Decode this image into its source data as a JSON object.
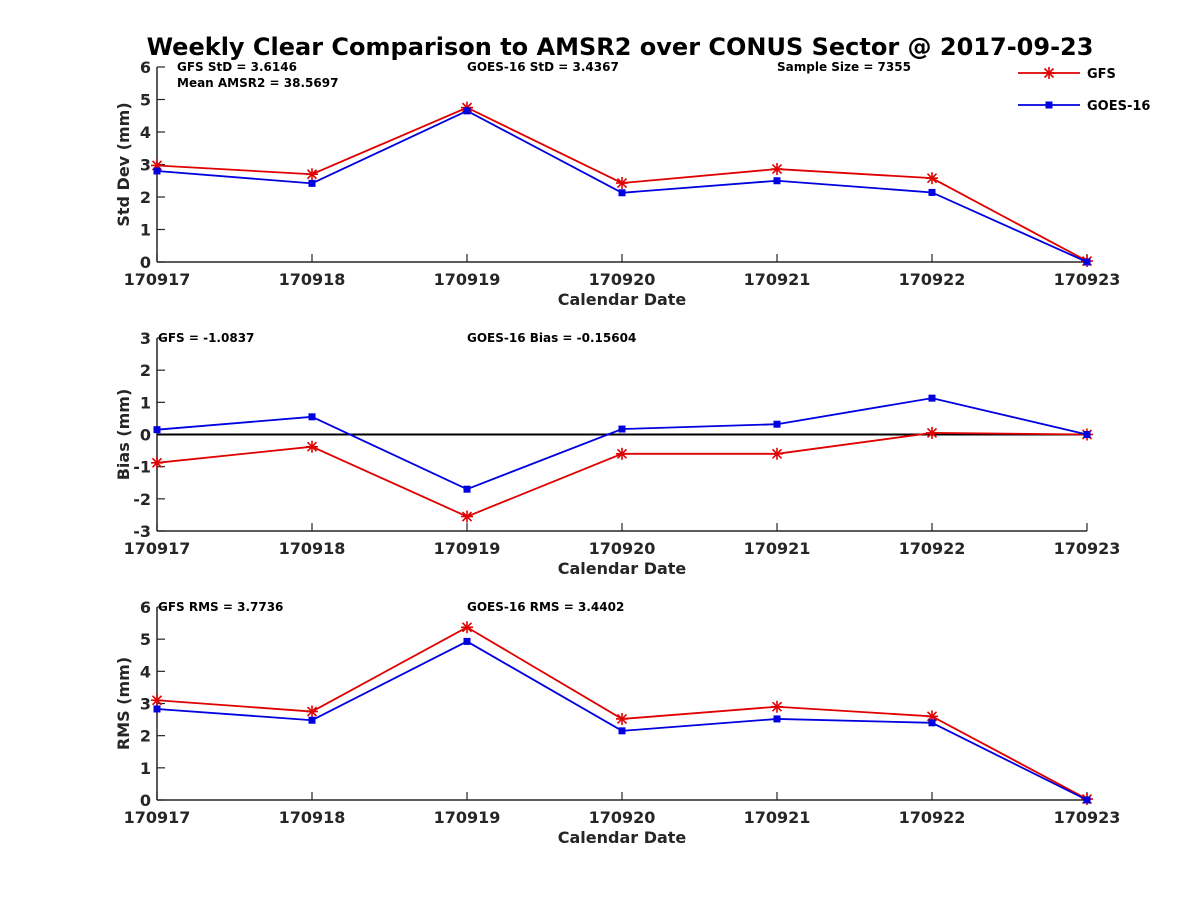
{
  "title": "Weekly Clear Comparison to AMSR2 over CONUS Sector @ 2017-09-23",
  "legend": {
    "placement": "top-right",
    "entries": [
      {
        "name": "GFS",
        "color": "#e00000",
        "marker": "asterisk"
      },
      {
        "name": "GOES-16",
        "color": "#0000e0",
        "marker": "square"
      }
    ]
  },
  "chart_data": [
    {
      "type": "line",
      "xlabel": "Calendar Date",
      "ylabel": "Std Dev (mm)",
      "ylim": [
        0,
        6
      ],
      "yticks": [
        "0",
        "1",
        "2",
        "3",
        "4",
        "5",
        "6"
      ],
      "categories": [
        "170917",
        "170918",
        "170919",
        "170920",
        "170921",
        "170922",
        "170923"
      ],
      "zero_line": false,
      "annotations": [
        "GFS StD = 3.6146",
        "Mean AMSR2 = 38.5697",
        "GOES-16 StD = 3.4367",
        "Sample Size = 7355"
      ],
      "series": [
        {
          "name": "GFS",
          "color": "#e00000",
          "marker": "asterisk",
          "values": [
            2.97,
            2.7,
            4.75,
            2.43,
            2.86,
            2.58,
            0.03
          ]
        },
        {
          "name": "GOES-16",
          "color": "#0000e0",
          "marker": "square",
          "values": [
            2.8,
            2.42,
            4.65,
            2.13,
            2.5,
            2.14,
            0.0
          ]
        }
      ]
    },
    {
      "type": "line",
      "xlabel": "Calendar Date",
      "ylabel": "Bias (mm)",
      "ylim": [
        -3,
        3
      ],
      "yticks": [
        "-3",
        "-2",
        "-1",
        "0",
        "1",
        "2",
        "3"
      ],
      "categories": [
        "170917",
        "170918",
        "170919",
        "170920",
        "170921",
        "170922",
        "170923"
      ],
      "zero_line": true,
      "annotations": [
        "GFS = -1.0837",
        "GOES-16 Bias  = -0.15604"
      ],
      "series": [
        {
          "name": "GFS",
          "color": "#e00000",
          "marker": "asterisk",
          "values": [
            -0.88,
            -0.38,
            -2.55,
            -0.6,
            -0.6,
            0.05,
            0.0
          ]
        },
        {
          "name": "GOES-16",
          "color": "#0000e0",
          "marker": "square",
          "values": [
            0.15,
            0.55,
            -1.7,
            0.17,
            0.32,
            1.13,
            0.0
          ]
        }
      ]
    },
    {
      "type": "line",
      "xlabel": "Calendar Date",
      "ylabel": "RMS (mm)",
      "ylim": [
        0,
        6
      ],
      "yticks": [
        "0",
        "1",
        "2",
        "3",
        "4",
        "5",
        "6"
      ],
      "categories": [
        "170917",
        "170918",
        "170919",
        "170920",
        "170921",
        "170922",
        "170923"
      ],
      "zero_line": false,
      "annotations": [
        "GFS RMS = 3.7736",
        "GOES-16 RMS = 3.4402"
      ],
      "series": [
        {
          "name": "GFS",
          "color": "#e00000",
          "marker": "asterisk",
          "values": [
            3.1,
            2.75,
            5.37,
            2.52,
            2.9,
            2.6,
            0.03
          ]
        },
        {
          "name": "GOES-16",
          "color": "#0000e0",
          "marker": "square",
          "values": [
            2.83,
            2.48,
            4.93,
            2.15,
            2.52,
            2.4,
            0.0
          ]
        }
      ]
    }
  ]
}
